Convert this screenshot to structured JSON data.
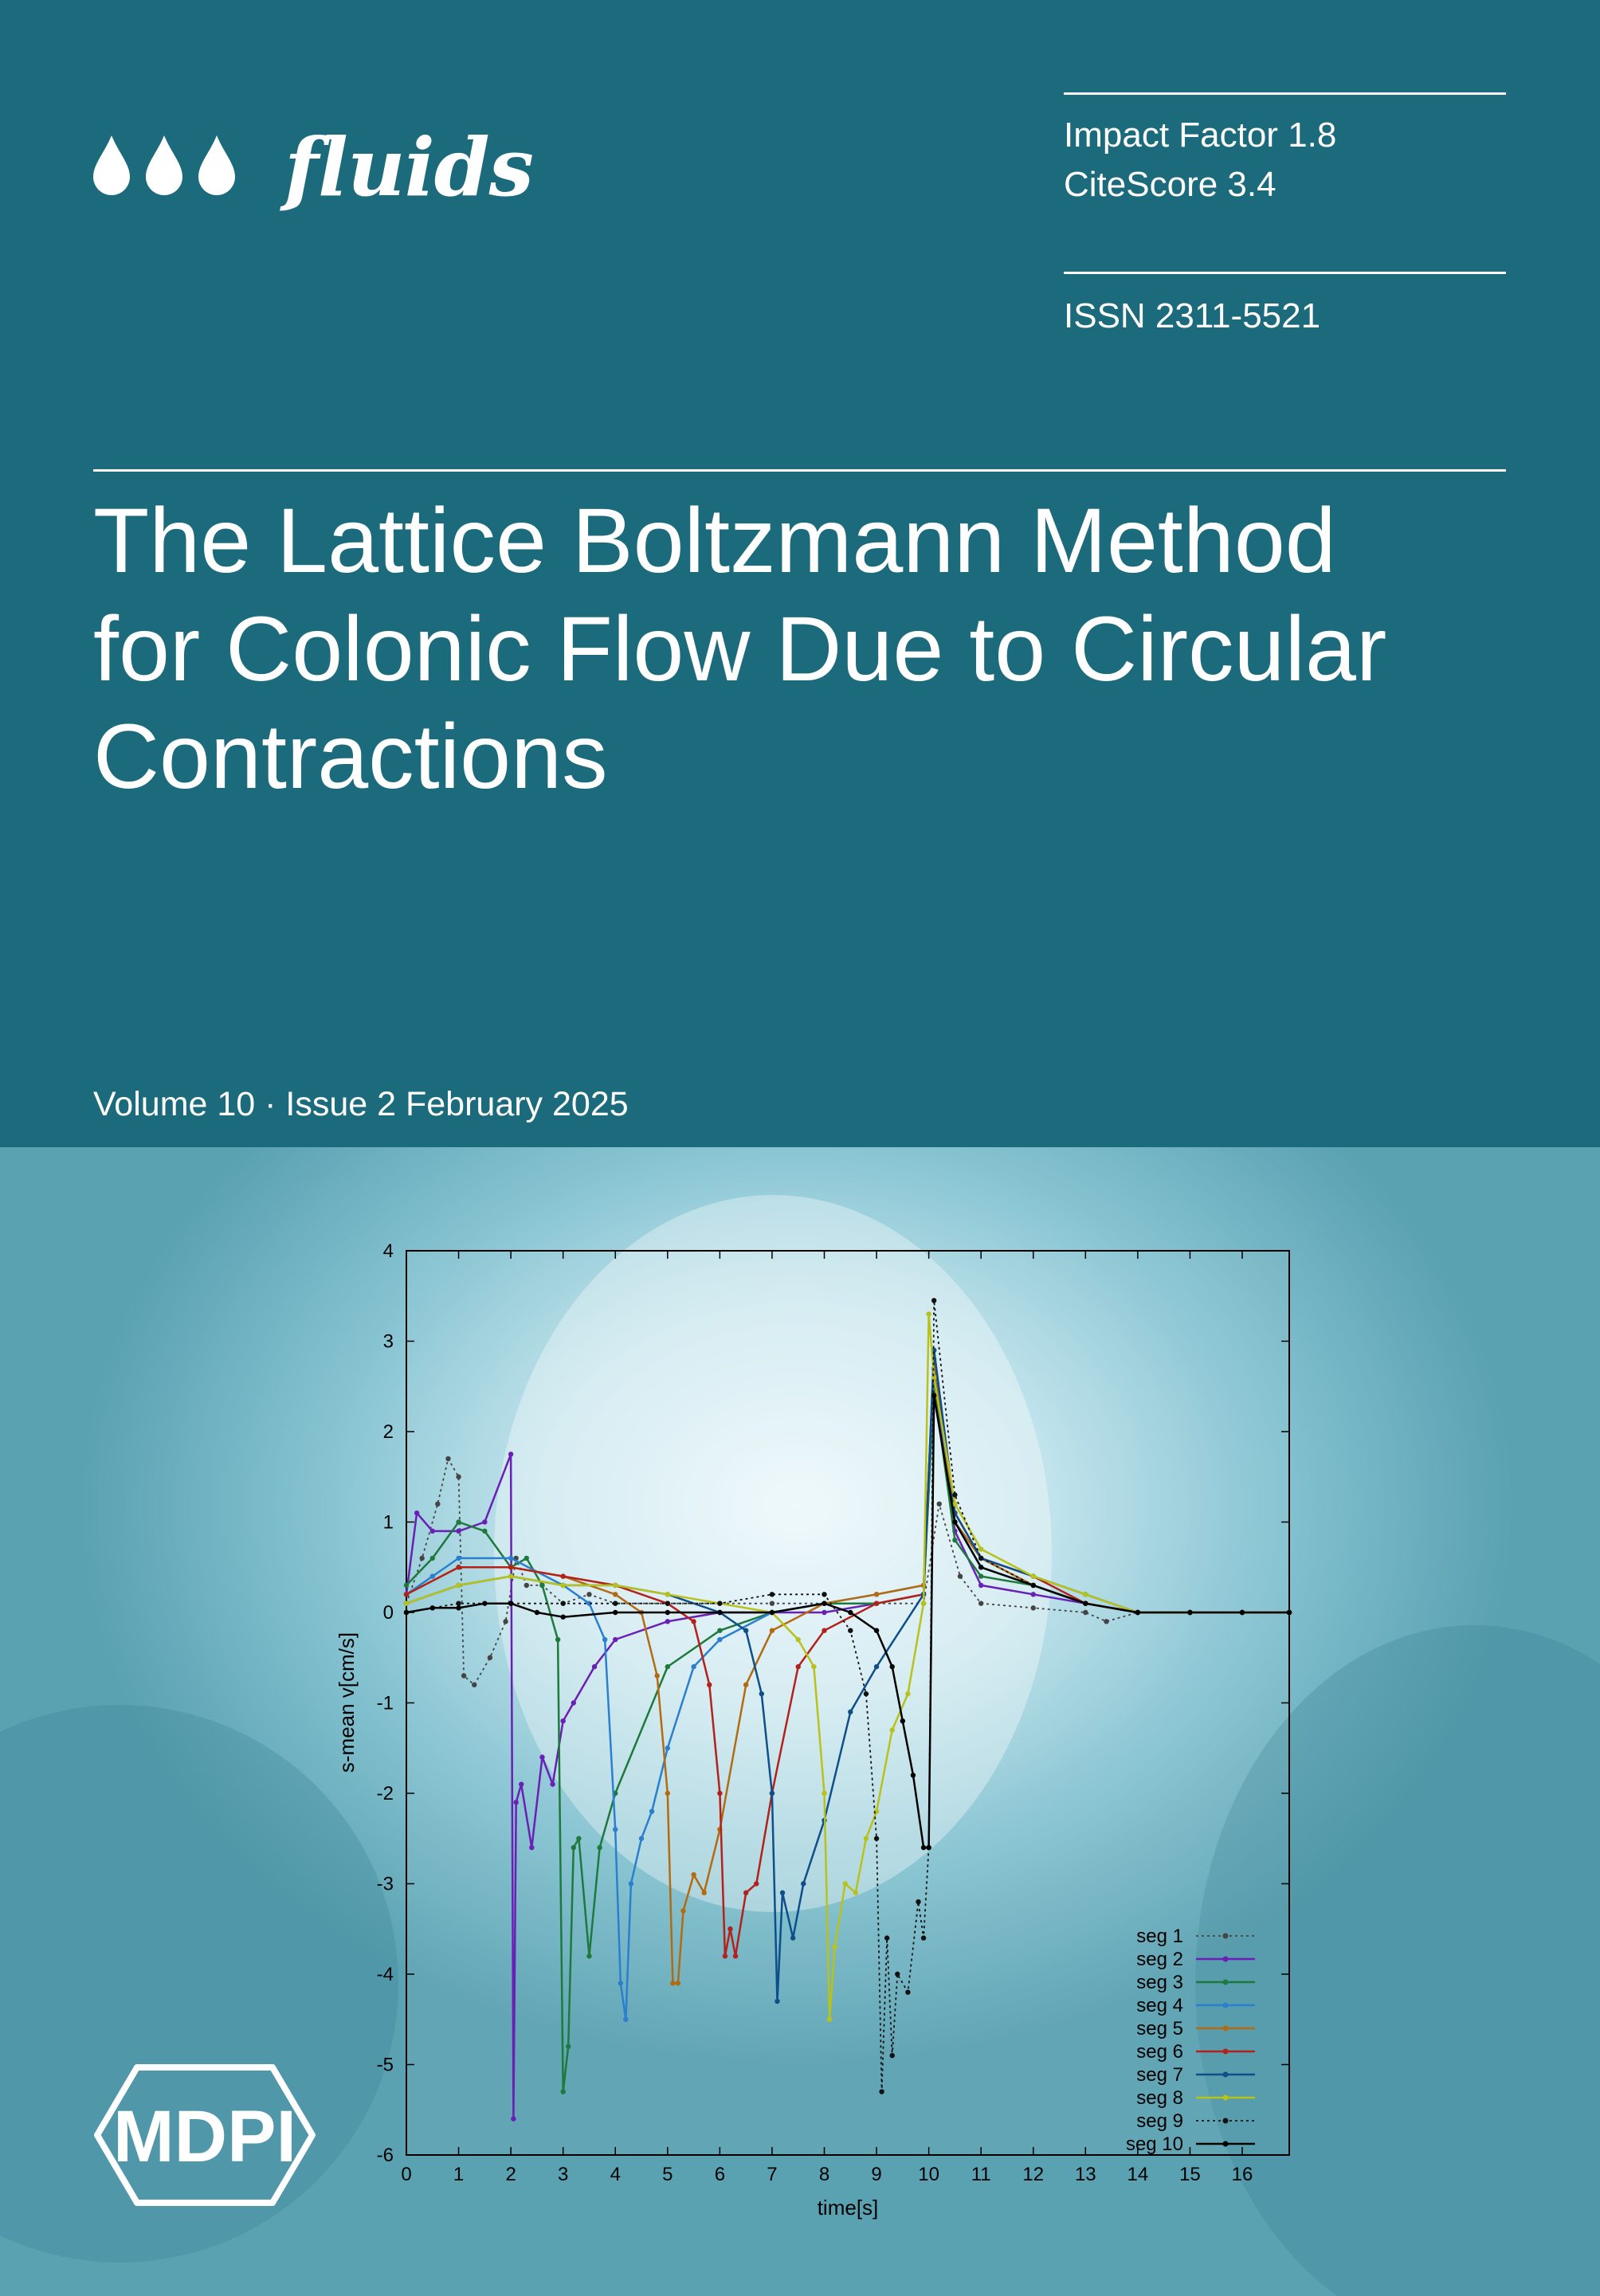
{
  "journal": {
    "name": "fluids",
    "logo_icon": "three-drops-icon"
  },
  "metrics": {
    "impact_factor": "Impact Factor 1.8",
    "citescore": "CiteScore 3.4",
    "issn": "ISSN 2311-5521"
  },
  "article": {
    "title_line1": "The Lattice Boltzmann Method",
    "title_line2": "for Colonic Flow Due to Circular",
    "title_line3": "Contractions"
  },
  "issue": "Volume 10 · Issue 2 February 2025",
  "publisher": {
    "logo_text": "MDPI"
  },
  "colors": {
    "header_bg": "#1c6b7d",
    "text": "#ffffff"
  },
  "chart_data": {
    "type": "line",
    "xlabel": "time[s]",
    "ylabel": "s-mean v[cm/s]",
    "xlim": [
      0,
      16.9
    ],
    "ylim": [
      -6,
      4
    ],
    "xticks": [
      "0",
      "1",
      "2",
      "3",
      "4",
      "5",
      "6",
      "7",
      "8",
      "9",
      "10",
      "11",
      "12",
      "13",
      "14",
      "15",
      "16"
    ],
    "yticks": [
      "-6",
      "-5",
      "-4",
      "-3",
      "-2",
      "-1",
      "0",
      "1",
      "2",
      "3",
      "4"
    ],
    "legend_position": "bottom-right",
    "series": [
      {
        "name": "seg 1",
        "color": "#444444",
        "dash": true,
        "x": [
          0,
          0.3,
          0.6,
          0.8,
          1.0,
          1.1,
          1.3,
          1.6,
          1.9,
          2.1,
          2.3,
          2.6,
          3.0,
          3.5,
          4.0,
          5.0,
          6.0,
          7.0,
          8.0,
          9.0,
          9.9,
          10.2,
          10.6,
          11.0,
          12.0,
          13.0,
          13.4,
          14,
          15,
          16,
          16.9
        ],
        "y": [
          0.1,
          0.6,
          1.2,
          1.7,
          1.5,
          -0.7,
          -0.8,
          -0.5,
          -0.1,
          0.6,
          0.3,
          0.3,
          0.1,
          0.2,
          0.1,
          0.1,
          0.1,
          0.1,
          0.1,
          0.1,
          0.1,
          1.2,
          0.4,
          0.1,
          0.05,
          0.0,
          -0.1,
          0,
          0,
          0,
          0
        ]
      },
      {
        "name": "seg 2",
        "color": "#6a1fb5",
        "dash": false,
        "x": [
          0,
          0.2,
          0.5,
          1.0,
          1.5,
          2.0,
          2.05,
          2.1,
          2.2,
          2.4,
          2.6,
          2.8,
          3.0,
          3.2,
          3.6,
          4.0,
          5.0,
          6.0,
          7.0,
          8.0,
          9.0,
          9.9,
          10.1,
          10.5,
          11.0,
          12.0,
          13.0,
          14,
          15,
          16,
          16.9
        ],
        "y": [
          0.2,
          1.1,
          0.9,
          0.9,
          1.0,
          1.75,
          -5.6,
          -2.1,
          -1.9,
          -2.6,
          -1.6,
          -1.9,
          -1.2,
          -1.0,
          -0.6,
          -0.3,
          -0.1,
          0.0,
          0.0,
          0.0,
          0.1,
          0.2,
          2.6,
          0.9,
          0.3,
          0.2,
          0.1,
          0,
          0,
          0,
          0
        ]
      },
      {
        "name": "seg 3",
        "color": "#1e7a3c",
        "dash": false,
        "x": [
          0,
          0.5,
          1.0,
          1.5,
          2.0,
          2.3,
          2.6,
          2.9,
          3.0,
          3.1,
          3.2,
          3.3,
          3.5,
          3.7,
          4.0,
          5.0,
          6.0,
          7.0,
          8.0,
          9.0,
          9.9,
          10.1,
          10.5,
          11.0,
          12.0,
          13.0,
          14,
          15,
          16,
          16.9
        ],
        "y": [
          0.3,
          0.6,
          1.0,
          0.9,
          0.5,
          0.6,
          0.3,
          -0.3,
          -5.3,
          -4.8,
          -2.6,
          -2.5,
          -3.8,
          -2.6,
          -2.0,
          -0.6,
          -0.2,
          0.0,
          0.1,
          0.1,
          0.2,
          2.5,
          0.8,
          0.4,
          0.3,
          0.1,
          0,
          0,
          0,
          0
        ]
      },
      {
        "name": "seg 4",
        "color": "#2a7fcf",
        "dash": false,
        "x": [
          0,
          0.5,
          1.0,
          2.0,
          3.0,
          3.5,
          3.8,
          4.0,
          4.1,
          4.2,
          4.3,
          4.5,
          4.7,
          5.0,
          5.5,
          6.0,
          7.0,
          8.0,
          9.0,
          9.9,
          10.1,
          10.5,
          11.0,
          12.0,
          13.0,
          14,
          15,
          16,
          16.9
        ],
        "y": [
          0.2,
          0.4,
          0.6,
          0.6,
          0.3,
          0.1,
          -0.3,
          -2.4,
          -4.1,
          -4.5,
          -3.0,
          -2.5,
          -2.2,
          -1.5,
          -0.6,
          -0.3,
          0.0,
          0.1,
          0.2,
          0.3,
          2.7,
          1.0,
          0.5,
          0.3,
          0.1,
          0,
          0,
          0,
          0
        ]
      },
      {
        "name": "seg 5",
        "color": "#b46a10",
        "dash": false,
        "x": [
          0,
          1.0,
          2.0,
          3.0,
          4.0,
          4.5,
          4.8,
          5.0,
          5.1,
          5.2,
          5.3,
          5.5,
          5.7,
          6.0,
          6.5,
          7.0,
          8.0,
          9.0,
          9.9,
          10.1,
          10.5,
          11.0,
          12.0,
          13.0,
          14,
          15,
          16,
          16.9
        ],
        "y": [
          0.2,
          0.5,
          0.5,
          0.4,
          0.2,
          0.0,
          -0.7,
          -2.0,
          -4.1,
          -4.1,
          -3.3,
          -2.9,
          -3.1,
          -2.4,
          -0.8,
          -0.2,
          0.1,
          0.2,
          0.3,
          2.8,
          1.0,
          0.6,
          0.3,
          0.1,
          0,
          0,
          0,
          0
        ]
      },
      {
        "name": "seg 6",
        "color": "#b3211b",
        "dash": false,
        "x": [
          0,
          1.0,
          2.0,
          3.0,
          4.0,
          5.0,
          5.5,
          5.8,
          6.0,
          6.1,
          6.2,
          6.3,
          6.5,
          6.7,
          7.0,
          7.5,
          8.0,
          9.0,
          9.9,
          10.1,
          10.5,
          11.0,
          12.0,
          13.0,
          14,
          15,
          16,
          16.9
        ],
        "y": [
          0.2,
          0.5,
          0.5,
          0.4,
          0.3,
          0.1,
          -0.1,
          -0.8,
          -2.0,
          -3.8,
          -3.5,
          -3.8,
          -3.1,
          -3.0,
          -2.0,
          -0.6,
          -0.2,
          0.1,
          0.2,
          2.9,
          1.1,
          0.6,
          0.4,
          0.1,
          0,
          0,
          0,
          0
        ]
      },
      {
        "name": "seg 7",
        "color": "#0e4f8a",
        "dash": false,
        "x": [
          0,
          1.0,
          2.0,
          3.0,
          4.0,
          5.0,
          6.0,
          6.5,
          6.8,
          7.0,
          7.1,
          7.2,
          7.4,
          7.6,
          8.0,
          8.5,
          9.0,
          9.9,
          10.1,
          10.5,
          11.0,
          12.0,
          13.0,
          14,
          15,
          16,
          16.9
        ],
        "y": [
          0.1,
          0.3,
          0.4,
          0.3,
          0.3,
          0.2,
          0.0,
          -0.2,
          -0.9,
          -2.0,
          -4.3,
          -3.1,
          -3.6,
          -3.0,
          -2.3,
          -1.1,
          -0.6,
          0.2,
          2.9,
          1.1,
          0.6,
          0.4,
          0.2,
          0,
          0,
          0,
          0
        ]
      },
      {
        "name": "seg 8",
        "color": "#b8c21a",
        "dash": false,
        "x": [
          0,
          1.0,
          2.0,
          3.0,
          4.0,
          5.0,
          6.0,
          7.0,
          7.5,
          7.8,
          8.0,
          8.1,
          8.2,
          8.4,
          8.6,
          8.8,
          9.0,
          9.3,
          9.6,
          9.9,
          10.0,
          10.1,
          10.5,
          11.0,
          12.0,
          13.0,
          14,
          15,
          16,
          16.9
        ],
        "y": [
          0.1,
          0.3,
          0.4,
          0.3,
          0.3,
          0.2,
          0.1,
          0.0,
          -0.3,
          -0.6,
          -2.0,
          -4.5,
          -3.7,
          -3.0,
          -3.1,
          -2.5,
          -2.2,
          -1.3,
          -0.9,
          0.1,
          3.3,
          2.6,
          1.2,
          0.7,
          0.4,
          0.2,
          0,
          0,
          0,
          0
        ]
      },
      {
        "name": "seg 9",
        "color": "#111111",
        "dash": true,
        "x": [
          0,
          1.0,
          2.0,
          3.0,
          4.0,
          5.0,
          6.0,
          7.0,
          8.0,
          8.5,
          8.8,
          9.0,
          9.1,
          9.2,
          9.3,
          9.4,
          9.6,
          9.8,
          9.9,
          10.0,
          10.1,
          10.5,
          11.0,
          12.0,
          13.0,
          14,
          15,
          16,
          16.9
        ],
        "y": [
          0.0,
          0.1,
          0.1,
          0.1,
          0.1,
          0.1,
          0.1,
          0.2,
          0.2,
          -0.2,
          -0.9,
          -2.5,
          -5.3,
          -3.6,
          -4.9,
          -4.0,
          -4.2,
          -3.2,
          -3.6,
          -2.6,
          3.45,
          1.3,
          0.6,
          0.3,
          0.1,
          0,
          0,
          0,
          0
        ]
      },
      {
        "name": "seg 10",
        "color": "#000000",
        "dash": false,
        "x": [
          0,
          0.5,
          1.0,
          1.5,
          2.0,
          2.5,
          3.0,
          4.0,
          5.0,
          6.0,
          7.0,
          8.0,
          8.5,
          9.0,
          9.3,
          9.5,
          9.7,
          9.9,
          10.0,
          10.1,
          10.5,
          11.0,
          12.0,
          13.0,
          14,
          15,
          16,
          16.9
        ],
        "y": [
          0.0,
          0.05,
          0.05,
          0.1,
          0.1,
          0.0,
          -0.05,
          0.0,
          0.0,
          0.0,
          0.0,
          0.1,
          0.0,
          -0.2,
          -0.6,
          -1.2,
          -1.8,
          -2.6,
          -2.6,
          2.4,
          1.0,
          0.5,
          0.3,
          0.1,
          0,
          0,
          0,
          0
        ]
      }
    ]
  }
}
